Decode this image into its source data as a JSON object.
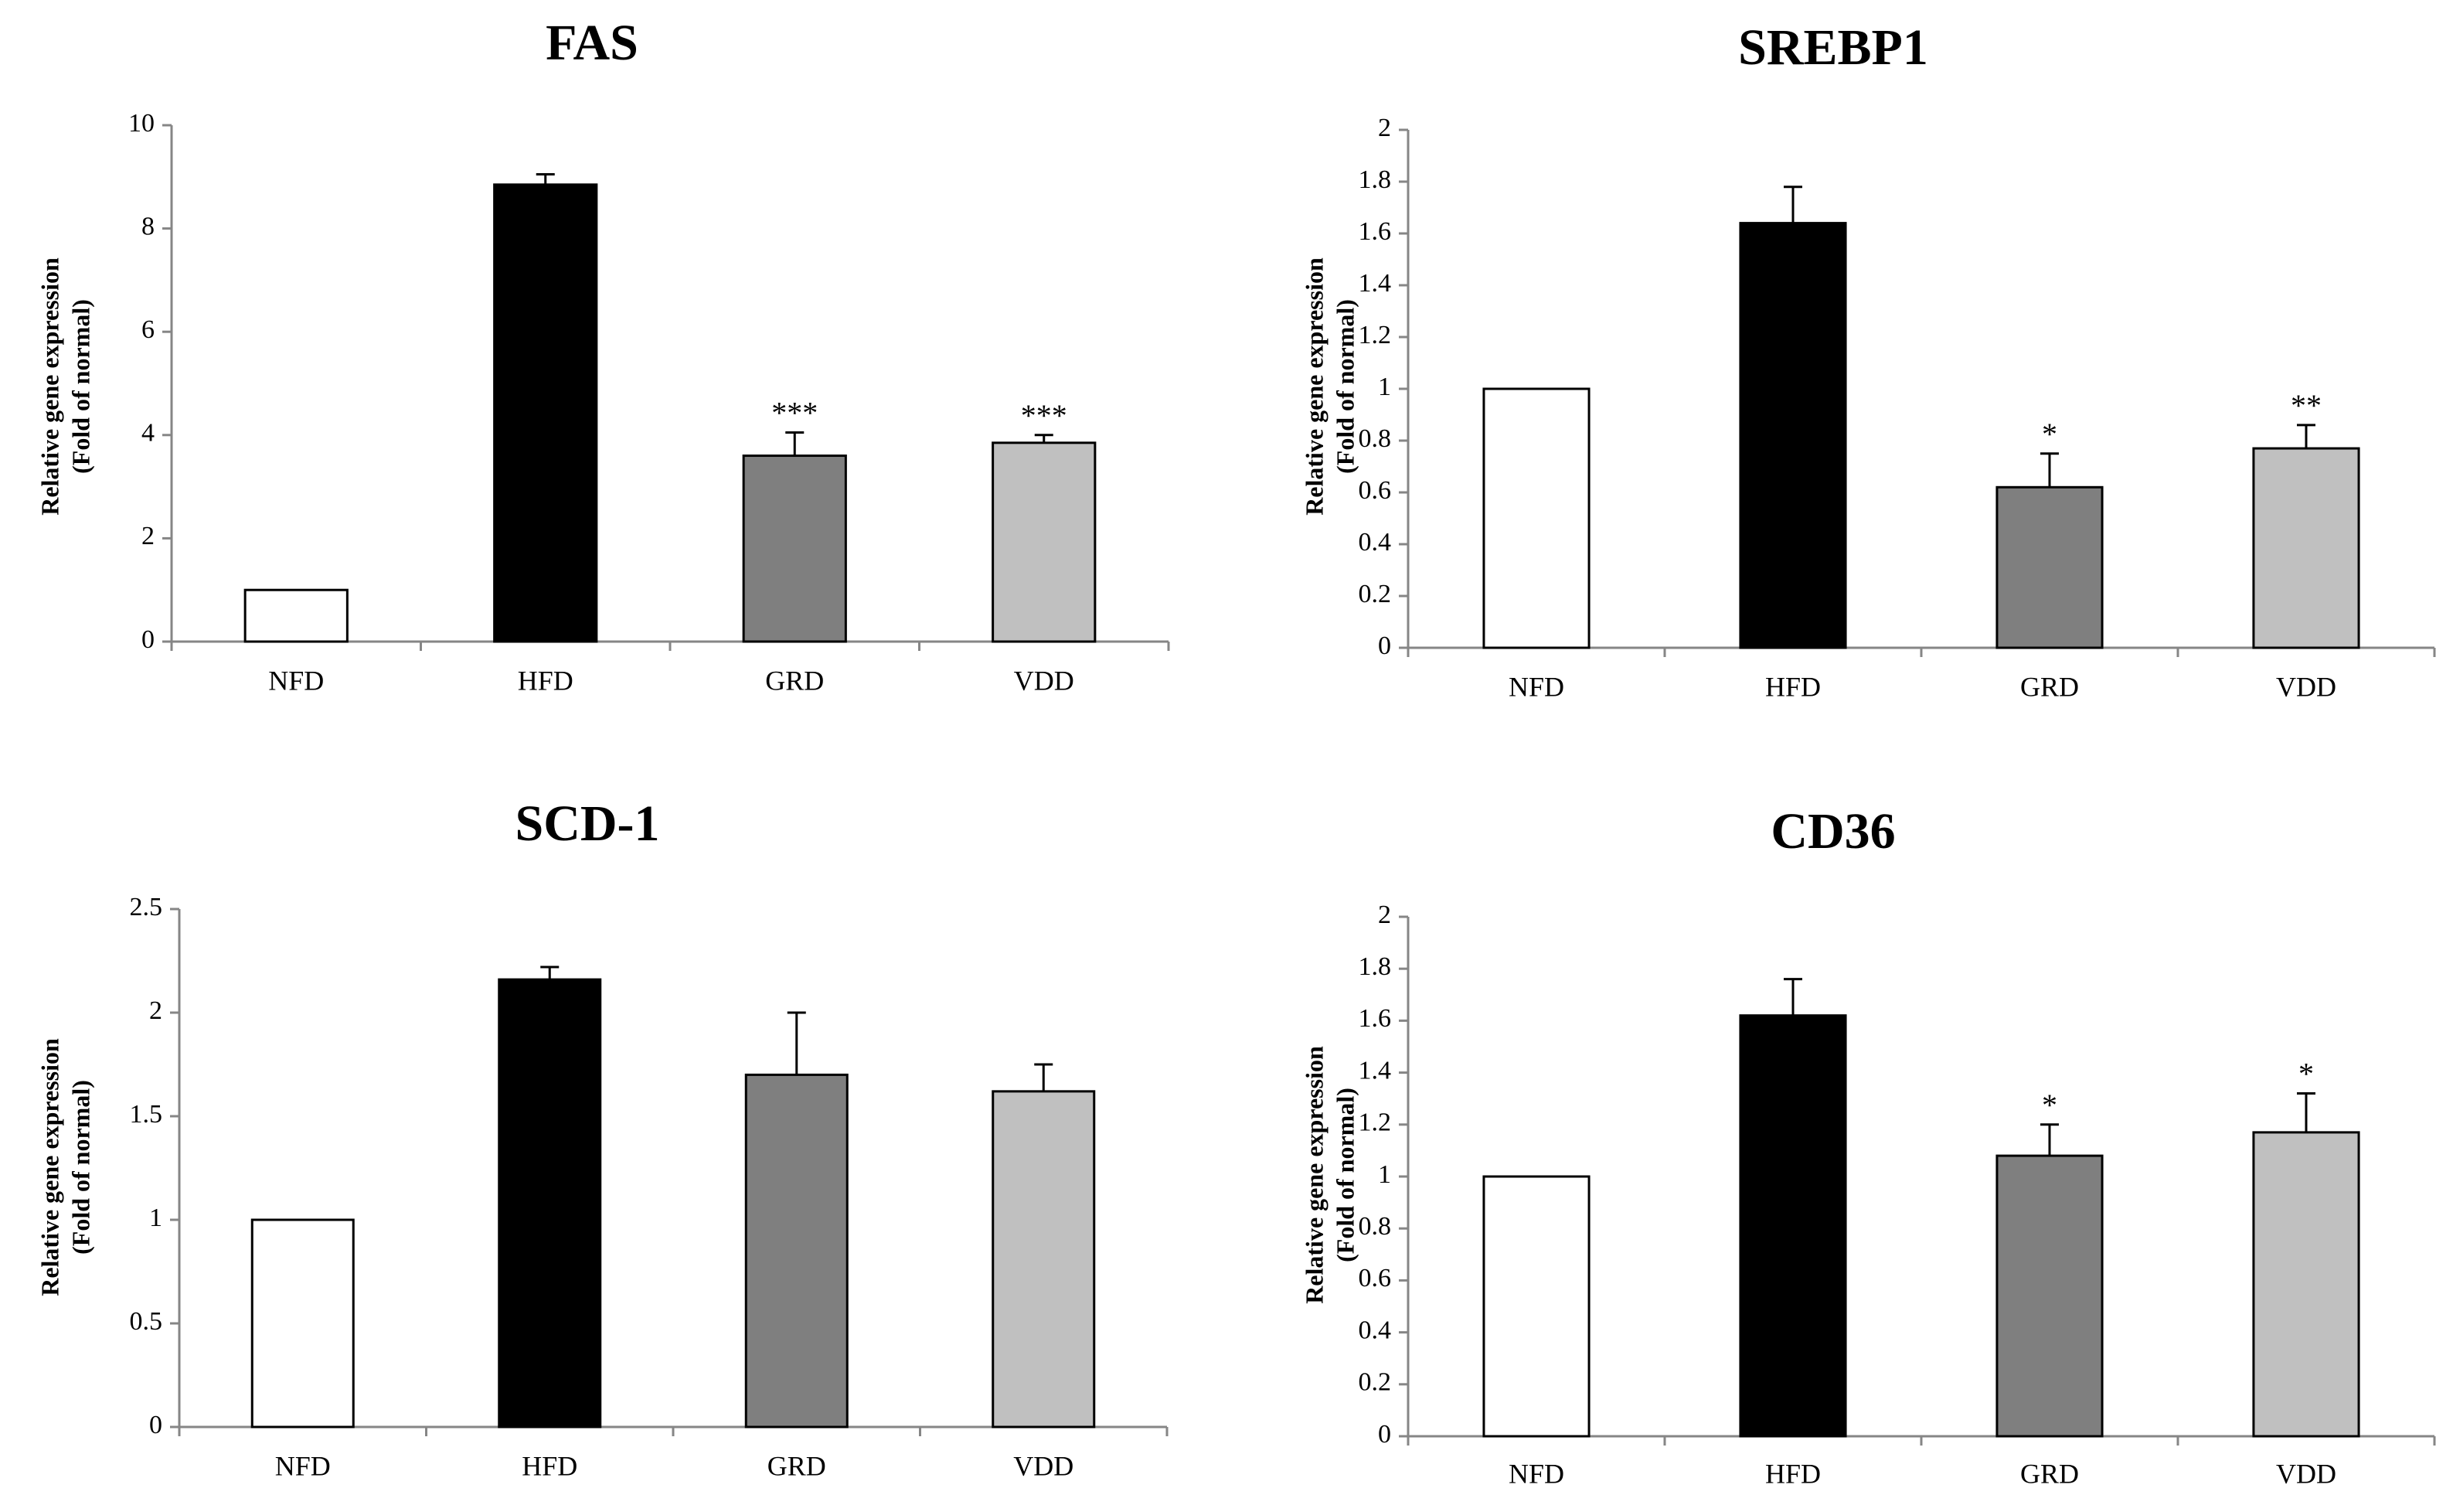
{
  "chart_data": [
    {
      "type": "bar",
      "title": "FAS",
      "xlabel": "",
      "ylabel": [
        "Relative gene expression",
        "(Fold of normal)"
      ],
      "categories": [
        "NFD",
        "HFD",
        "GRD",
        "VDD"
      ],
      "values": [
        1,
        8.85,
        3.6,
        3.85
      ],
      "errors": [
        0,
        0.2,
        0.45,
        0.15
      ],
      "significance": [
        "",
        "",
        "***",
        "***"
      ],
      "colors": [
        "#ffffff",
        "#000000",
        "#7f7f7f",
        "#c0c0c0"
      ],
      "ylim": [
        0,
        10
      ],
      "yticks": [
        0,
        2,
        4,
        6,
        8,
        10
      ],
      "ytick_labels": [
        "0",
        "2",
        "4",
        "6",
        "8",
        "10"
      ]
    },
    {
      "type": "bar",
      "title": "SREBP1",
      "xlabel": "",
      "ylabel": [
        "Relative gene expression",
        "(Fold of normal)"
      ],
      "categories": [
        "NFD",
        "HFD",
        "GRD",
        "VDD"
      ],
      "values": [
        1,
        1.64,
        0.62,
        0.77
      ],
      "errors": [
        0,
        0.14,
        0.13,
        0.09
      ],
      "significance": [
        "",
        "",
        "*",
        "**"
      ],
      "colors": [
        "#ffffff",
        "#000000",
        "#7f7f7f",
        "#c0c0c0"
      ],
      "ylim": [
        0,
        2
      ],
      "yticks": [
        0,
        0.2,
        0.4,
        0.6,
        0.8,
        1,
        1.2,
        1.4,
        1.6,
        1.8,
        2
      ],
      "ytick_labels": [
        "0",
        "0.2",
        "0.4",
        "0.6",
        "0.8",
        "1",
        "1.2",
        "1.4",
        "1.6",
        "1.8",
        "2"
      ]
    },
    {
      "type": "bar",
      "title": "SCD-1",
      "xlabel": "",
      "ylabel": [
        "Relative gene expression",
        "(Fold of normal)"
      ],
      "categories": [
        "NFD",
        "HFD",
        "GRD",
        "VDD"
      ],
      "values": [
        1,
        2.16,
        1.7,
        1.62
      ],
      "errors": [
        0,
        0.06,
        0.3,
        0.13
      ],
      "significance": [
        "",
        "",
        "",
        ""
      ],
      "colors": [
        "#ffffff",
        "#000000",
        "#7f7f7f",
        "#c0c0c0"
      ],
      "ylim": [
        0,
        2.5
      ],
      "yticks": [
        0,
        0.5,
        1,
        1.5,
        2,
        2.5
      ],
      "ytick_labels": [
        "0",
        "0.5",
        "1",
        "1.5",
        "2",
        "2.5"
      ]
    },
    {
      "type": "bar",
      "title": "CD36",
      "xlabel": "",
      "ylabel": [
        "Relative gene expression",
        "(Fold of normal)"
      ],
      "categories": [
        "NFD",
        "HFD",
        "GRD",
        "VDD"
      ],
      "values": [
        1,
        1.62,
        1.08,
        1.17
      ],
      "errors": [
        0,
        0.14,
        0.12,
        0.15
      ],
      "significance": [
        "",
        "",
        "*",
        "*"
      ],
      "colors": [
        "#ffffff",
        "#000000",
        "#7f7f7f",
        "#c0c0c0"
      ],
      "ylim": [
        0,
        2
      ],
      "yticks": [
        0,
        0.2,
        0.4,
        0.6,
        0.8,
        1,
        1.2,
        1.4,
        1.6,
        1.8,
        2
      ],
      "ytick_labels": [
        "0",
        "0.2",
        "0.4",
        "0.6",
        "0.8",
        "1",
        "1.2",
        "1.4",
        "1.6",
        "1.8",
        "2"
      ]
    }
  ]
}
